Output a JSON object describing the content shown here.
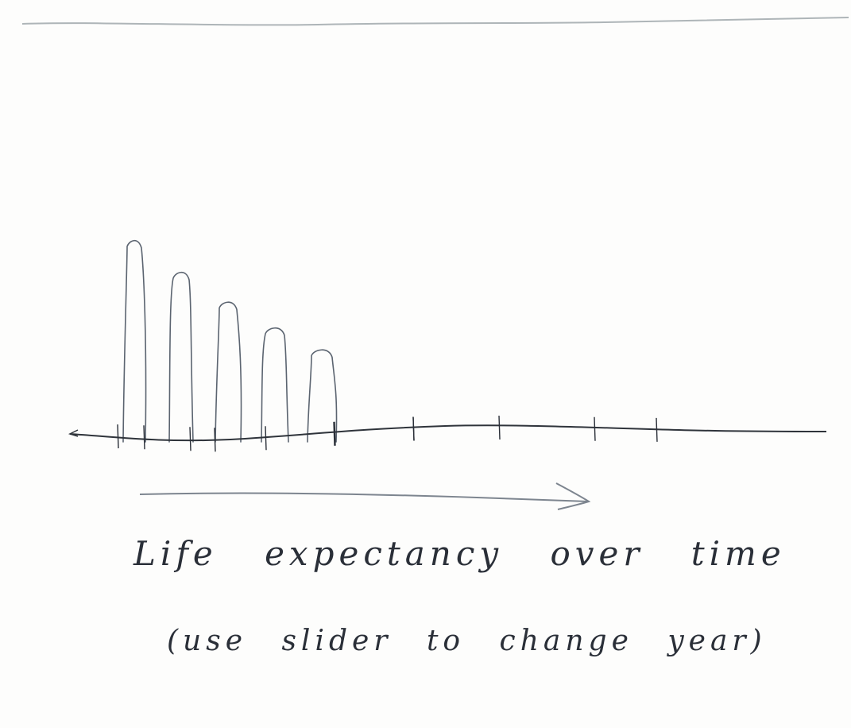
{
  "caption": {
    "title": "Life expectancy over time",
    "note": "(use slider to change year)"
  },
  "chart_data": {
    "type": "bar",
    "values": [
      100,
      84,
      69,
      56,
      45
    ],
    "ylim": [
      0,
      100
    ],
    "x_ticks": 12
  },
  "colors": {
    "ink": "#2a2f38",
    "pencil": "#7d858f",
    "paper": "#fdfdfc"
  }
}
